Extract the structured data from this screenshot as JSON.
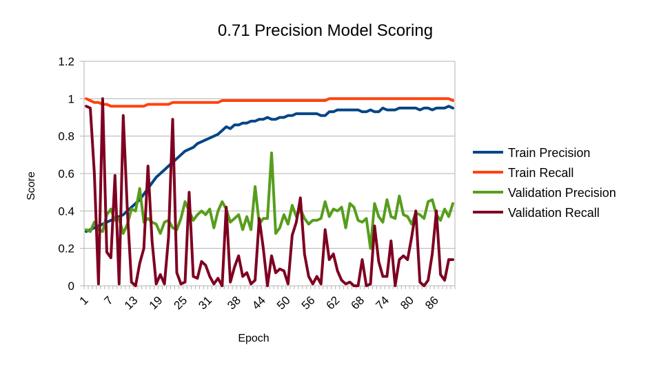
{
  "chart_data": {
    "type": "line",
    "title": "0.71 Precision Model Scoring",
    "xlabel": "Epoch",
    "ylabel": "Score",
    "ylim": [
      0,
      1.2
    ],
    "yticks": [
      "0",
      "0.2",
      "0.4",
      "0.6",
      "0.8",
      "1",
      "1.2"
    ],
    "xticks_shown": [
      "1",
      "7",
      "13",
      "19",
      "25",
      "31",
      "38",
      "44",
      "50",
      "56",
      "62",
      "68",
      "74",
      "80",
      "86"
    ],
    "grid": "horizontal",
    "legend_position": "right",
    "series": [
      {
        "name": "Train Precision",
        "color": "#004586",
        "values": [
          0.29,
          0.3,
          0.31,
          0.32,
          0.33,
          0.34,
          0.35,
          0.36,
          0.37,
          0.38,
          0.4,
          0.42,
          0.44,
          0.46,
          0.49,
          0.52,
          0.55,
          0.58,
          0.6,
          0.62,
          0.64,
          0.66,
          0.68,
          0.7,
          0.72,
          0.73,
          0.74,
          0.76,
          0.77,
          0.78,
          0.79,
          0.8,
          0.81,
          0.83,
          0.85,
          0.84,
          0.86,
          0.86,
          0.87,
          0.87,
          0.88,
          0.88,
          0.89,
          0.89,
          0.9,
          0.89,
          0.89,
          0.9,
          0.9,
          0.91,
          0.91,
          0.92,
          0.92,
          0.92,
          0.92,
          0.92,
          0.92,
          0.91,
          0.91,
          0.93,
          0.93,
          0.94,
          0.94,
          0.94,
          0.94,
          0.94,
          0.94,
          0.93,
          0.93,
          0.94,
          0.93,
          0.93,
          0.95,
          0.94,
          0.94,
          0.94,
          0.95,
          0.95,
          0.95,
          0.95,
          0.95,
          0.94,
          0.95,
          0.95,
          0.94,
          0.95,
          0.95,
          0.95,
          0.96,
          0.95
        ]
      },
      {
        "name": "Train Recall",
        "color": "#ff420e",
        "values": [
          1.0,
          0.99,
          0.98,
          0.98,
          0.97,
          0.97,
          0.96,
          0.96,
          0.96,
          0.96,
          0.96,
          0.96,
          0.96,
          0.96,
          0.96,
          0.97,
          0.97,
          0.97,
          0.97,
          0.97,
          0.97,
          0.98,
          0.98,
          0.98,
          0.98,
          0.98,
          0.98,
          0.98,
          0.98,
          0.98,
          0.98,
          0.98,
          0.98,
          0.99,
          0.99,
          0.99,
          0.99,
          0.99,
          0.99,
          0.99,
          0.99,
          0.99,
          0.99,
          0.99,
          0.99,
          0.99,
          0.99,
          0.99,
          0.99,
          0.99,
          0.99,
          0.99,
          0.99,
          0.99,
          0.99,
          0.99,
          0.99,
          0.99,
          0.99,
          1.0,
          1.0,
          1.0,
          1.0,
          1.0,
          1.0,
          1.0,
          1.0,
          1.0,
          1.0,
          1.0,
          1.0,
          1.0,
          1.0,
          1.0,
          1.0,
          1.0,
          1.0,
          1.0,
          1.0,
          1.0,
          1.0,
          1.0,
          1.0,
          1.0,
          1.0,
          1.0,
          1.0,
          1.0,
          1.0,
          0.99
        ]
      },
      {
        "name": "Validation Precision",
        "color": "#579d1c",
        "values": [
          0.3,
          0.29,
          0.34,
          0.3,
          0.29,
          0.38,
          0.41,
          0.35,
          0.36,
          0.28,
          0.33,
          0.41,
          0.4,
          0.52,
          0.34,
          0.36,
          0.34,
          0.33,
          0.28,
          0.34,
          0.35,
          0.31,
          0.3,
          0.36,
          0.45,
          0.4,
          0.35,
          0.38,
          0.4,
          0.38,
          0.41,
          0.31,
          0.4,
          0.45,
          0.41,
          0.34,
          0.36,
          0.38,
          0.3,
          0.37,
          0.3,
          0.53,
          0.33,
          0.36,
          0.36,
          0.71,
          0.28,
          0.31,
          0.38,
          0.33,
          0.43,
          0.37,
          0.41,
          0.36,
          0.33,
          0.35,
          0.35,
          0.36,
          0.45,
          0.37,
          0.41,
          0.4,
          0.42,
          0.31,
          0.44,
          0.42,
          0.35,
          0.34,
          0.36,
          0.2,
          0.44,
          0.37,
          0.34,
          0.46,
          0.37,
          0.36,
          0.48,
          0.38,
          0.37,
          0.33,
          0.39,
          0.38,
          0.36,
          0.45,
          0.46,
          0.38,
          0.35,
          0.41,
          0.37,
          0.44
        ]
      },
      {
        "name": "Validation Recall",
        "color": "#7e0021",
        "values": [
          0.96,
          0.95,
          0.6,
          0.01,
          1.0,
          0.18,
          0.15,
          0.59,
          0.01,
          0.91,
          0.4,
          0.02,
          0.0,
          0.12,
          0.2,
          0.64,
          0.24,
          0.01,
          0.06,
          0.01,
          0.26,
          0.89,
          0.07,
          0.01,
          0.02,
          0.5,
          0.05,
          0.04,
          0.13,
          0.11,
          0.05,
          0.01,
          0.04,
          0.0,
          0.42,
          0.02,
          0.1,
          0.16,
          0.05,
          0.07,
          0.01,
          0.03,
          0.36,
          0.2,
          0.0,
          0.16,
          0.07,
          0.09,
          0.08,
          0.01,
          0.27,
          0.34,
          0.47,
          0.17,
          0.05,
          0.01,
          0.05,
          0.01,
          0.3,
          0.14,
          0.17,
          0.08,
          0.03,
          0.01,
          0.02,
          0.0,
          0.0,
          0.14,
          0.0,
          0.01,
          0.32,
          0.13,
          0.05,
          0.05,
          0.24,
          0.0,
          0.14,
          0.16,
          0.14,
          0.26,
          0.4,
          0.02,
          0.0,
          0.03,
          0.17,
          0.4,
          0.06,
          0.03,
          0.14,
          0.14
        ]
      }
    ]
  }
}
